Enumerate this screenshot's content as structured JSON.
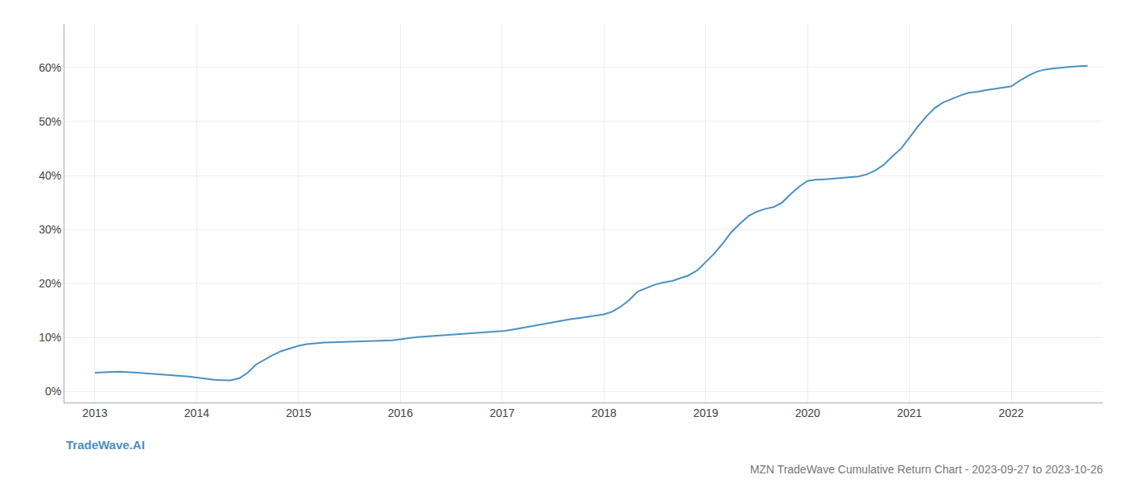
{
  "chart_data": {
    "type": "line",
    "title": "MZN TradeWave Cumulative Return Chart - 2023-09-27 to 2023-10-26",
    "annotations": [
      {
        "text": "TradeWave.AI",
        "color": "#4a90c4"
      }
    ],
    "color": "#4a90c4",
    "grid": true,
    "x": [
      2013.0,
      2013.08,
      2013.17,
      2013.25,
      2013.33,
      2013.42,
      2013.5,
      2013.58,
      2013.67,
      2013.75,
      2013.83,
      2013.92,
      2014.0,
      2014.08,
      2014.17,
      2014.25,
      2014.33,
      2014.42,
      2014.5,
      2014.58,
      2014.67,
      2014.75,
      2014.83,
      2014.92,
      2015.0,
      2015.08,
      2015.17,
      2015.25,
      2015.33,
      2015.42,
      2015.5,
      2015.58,
      2015.67,
      2015.75,
      2015.83,
      2015.92,
      2016.0,
      2016.08,
      2016.17,
      2016.25,
      2016.33,
      2016.42,
      2016.5,
      2016.58,
      2016.67,
      2016.75,
      2016.83,
      2016.92,
      2017.0,
      2017.08,
      2017.17,
      2017.25,
      2017.33,
      2017.42,
      2017.5,
      2017.58,
      2017.67,
      2017.75,
      2017.83,
      2017.92,
      2018.0,
      2018.08,
      2018.17,
      2018.25,
      2018.33,
      2018.42,
      2018.5,
      2018.58,
      2018.67,
      2018.75,
      2018.83,
      2018.92,
      2019.0,
      2019.08,
      2019.17,
      2019.25,
      2019.33,
      2019.42,
      2019.5,
      2019.58,
      2019.67,
      2019.75,
      2019.83,
      2019.92,
      2020.0,
      2020.08,
      2020.17,
      2020.25,
      2020.33,
      2020.42,
      2020.5,
      2020.58,
      2020.67,
      2020.75,
      2020.83,
      2020.92,
      2021.0,
      2021.08,
      2021.17,
      2021.25,
      2021.33,
      2021.42,
      2021.5,
      2021.58,
      2021.67,
      2021.75,
      2021.83,
      2021.92,
      2022.0,
      2022.08,
      2022.17,
      2022.25,
      2022.33,
      2022.42,
      2022.5,
      2022.58,
      2022.67,
      2022.75
    ],
    "values": [
      3.5,
      3.6,
      3.65,
      3.7,
      3.65,
      3.5,
      3.4,
      3.3,
      3.2,
      3.1,
      3.0,
      2.8,
      2.6,
      2.4,
      2.2,
      2.15,
      2.1,
      2.5,
      3.5,
      5.0,
      6.0,
      6.8,
      7.5,
      8.0,
      8.5,
      8.8,
      9.0,
      9.1,
      9.15,
      9.2,
      9.2,
      9.25,
      9.3,
      9.35,
      9.4,
      9.5,
      9.7,
      9.9,
      10.1,
      10.2,
      10.3,
      10.4,
      10.5,
      10.6,
      10.7,
      10.8,
      10.9,
      11.0,
      11.2,
      11.4,
      11.7,
      12.0,
      12.3,
      12.6,
      12.9,
      13.1,
      13.4,
      13.6,
      13.8,
      14.0,
      14.3,
      14.8,
      15.8,
      17.0,
      18.5,
      19.2,
      19.8,
      20.2,
      20.5,
      21.0,
      21.5,
      22.5,
      24.0,
      25.5,
      27.5,
      29.5,
      31.0,
      32.5,
      33.3,
      33.8,
      34.2,
      35.0,
      36.5,
      38.0,
      39.0,
      39.2,
      39.3,
      39.4,
      39.5,
      39.6,
      39.8,
      40.2,
      41.0,
      42.0,
      43.5,
      45.0,
      47.0,
      49.0,
      51.0,
      52.5,
      53.5,
      54.2,
      54.8,
      55.3,
      55.5,
      55.8,
      56.0,
      56.2,
      56.5,
      57.5,
      58.5,
      59.2,
      59.6,
      59.8,
      60.0,
      60.1,
      60.2,
      60.3
    ],
    "xlim": [
      2012.7,
      2022.9
    ],
    "xticks": [
      2013,
      2014,
      2015,
      2016,
      2017,
      2018,
      2019,
      2020,
      2021,
      2022
    ],
    "ylim": [
      -2,
      68
    ],
    "yticks": [
      {
        "value": 0,
        "label": "0%"
      },
      {
        "value": 10,
        "label": "10%"
      },
      {
        "value": 20,
        "label": "20%"
      },
      {
        "value": 30,
        "label": "30%"
      },
      {
        "value": 40,
        "label": "40%"
      },
      {
        "value": 50,
        "label": "50%"
      },
      {
        "value": 60,
        "label": "60%"
      }
    ]
  }
}
